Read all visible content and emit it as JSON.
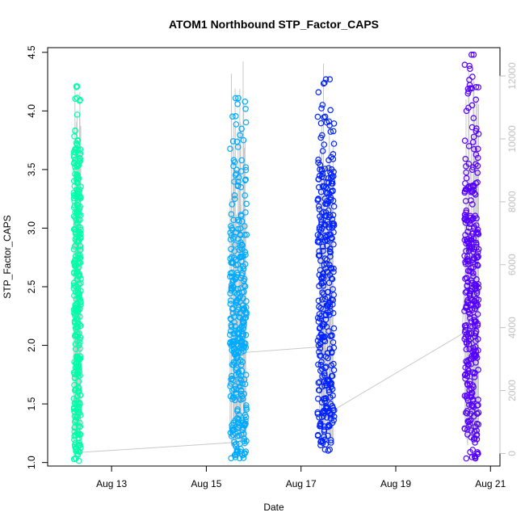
{
  "chart_data": {
    "type": "scatter",
    "title": "ATOM1 Northbound STP_Factor_CAPS",
    "xlabel": "Date",
    "ylabel": "STP_Factor_CAPS",
    "x_ticks": [
      "Aug 13",
      "Aug 15",
      "Aug 17",
      "Aug 19",
      "Aug 21"
    ],
    "x_tick_days": [
      13,
      15,
      17,
      19,
      21
    ],
    "xlim_days": [
      11.65,
      21.2
    ],
    "ylim": [
      0.97,
      4.54
    ],
    "y_ticks": [
      1.0,
      1.5,
      2.0,
      2.5,
      3.0,
      3.5,
      4.0,
      4.5
    ],
    "y_tick_labels": [
      "1.0",
      "1.5",
      "2.0",
      "2.5",
      "3.0",
      "3.5",
      "4.0",
      "4.5"
    ],
    "y2lim": [
      -400,
      12900
    ],
    "y2_ticks": [
      0,
      2000,
      4000,
      6000,
      8000,
      10000,
      12000
    ],
    "y2_tick_labels": [
      "0",
      "2000",
      "4000",
      "6000",
      "8000",
      "10000",
      "12000"
    ],
    "grid": false,
    "series": [
      {
        "color": "#00FFAA",
        "x_range": [
          12.2,
          12.35
        ],
        "y_range": [
          1.01,
          4.21
        ],
        "peaks": [
          3.32,
          3.55,
          3.83,
          4.21
        ]
      },
      {
        "color": "#00AAFF",
        "x_range": [
          15.5,
          15.85
        ],
        "y_range": [
          1.03,
          4.11
        ],
        "peaks": [
          2.7,
          3.0,
          3.28,
          3.52,
          4.11
        ]
      },
      {
        "color": "#0022FF",
        "x_range": [
          17.35,
          17.7
        ],
        "y_range": [
          1.1,
          4.27
        ],
        "peaks": [
          3.1,
          3.48,
          3.72,
          3.95,
          4.27
        ]
      },
      {
        "color": "#5500FF",
        "x_range": [
          20.45,
          20.75
        ],
        "y_range": [
          1.02,
          4.48
        ],
        "peaks": [
          2.97,
          3.15,
          3.6,
          3.85,
          4.48
        ]
      }
    ],
    "secondary_line": {
      "color": "#c8c8c8",
      "x": [
        12.3,
        15.6,
        15.72,
        17.5,
        17.6,
        20.4,
        20.6
      ],
      "y": [
        30,
        350,
        3200,
        3400,
        1300,
        3800,
        9500
      ]
    },
    "colors": {
      "axis": "#000000",
      "right_axis": "#c0c0c0",
      "secondary_line": "#c8c8c8"
    }
  }
}
